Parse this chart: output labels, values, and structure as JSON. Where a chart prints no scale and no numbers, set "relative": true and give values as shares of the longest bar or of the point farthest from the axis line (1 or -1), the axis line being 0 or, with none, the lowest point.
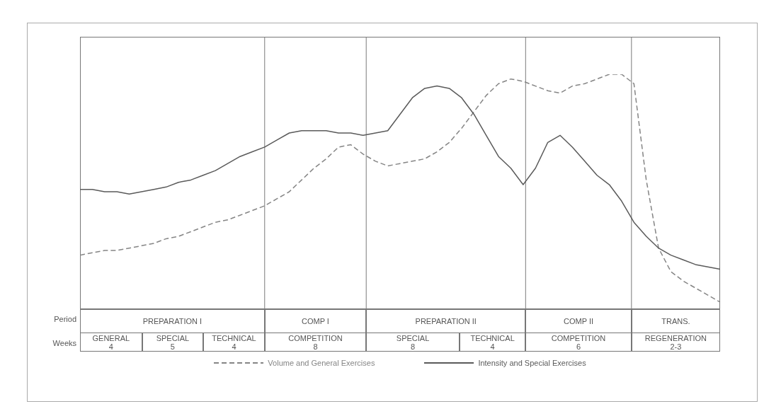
{
  "chart_data": {
    "type": "line",
    "relative": true,
    "categories": [
      null,
      null,
      null,
      null,
      null,
      null,
      null,
      null,
      null,
      null,
      null,
      null,
      null,
      null,
      null,
      null,
      null,
      null,
      null,
      null,
      null,
      null,
      null,
      null,
      null,
      null,
      null,
      null,
      null,
      null,
      null,
      null,
      null,
      null,
      null,
      null,
      null,
      null,
      null,
      null,
      null,
      null,
      null,
      null,
      null,
      null,
      null,
      null,
      null,
      null,
      null,
      null,
      null
    ],
    "series": [
      {
        "name": "Volume and General Exercises",
        "color": "#858585",
        "line_style": "dashed",
        "values": [
          0.23,
          0.24,
          0.25,
          0.25,
          0.26,
          0.27,
          0.28,
          0.3,
          0.31,
          0.33,
          0.35,
          0.37,
          0.38,
          0.4,
          0.42,
          0.44,
          0.47,
          0.5,
          0.55,
          0.6,
          0.64,
          0.69,
          0.7,
          0.66,
          0.63,
          0.61,
          0.62,
          0.63,
          0.64,
          0.67,
          0.71,
          0.77,
          0.84,
          0.91,
          0.96,
          0.98,
          0.97,
          0.95,
          0.93,
          0.92,
          0.95,
          0.96,
          0.98,
          1,
          1,
          0.96,
          0.55,
          0.26,
          0.16,
          0.12,
          0.09,
          0.06,
          0.03
        ]
      },
      {
        "name": "Intensity and Special Exercises",
        "color": "#5a5a5a",
        "line_style": "solid",
        "values": [
          0.51,
          0.51,
          0.5,
          0.5,
          0.49,
          0.5,
          0.51,
          0.52,
          0.54,
          0.55,
          0.57,
          0.59,
          0.62,
          0.65,
          0.67,
          0.69,
          0.72,
          0.75,
          0.76,
          0.76,
          0.76,
          0.75,
          0.75,
          0.74,
          0.75,
          0.76,
          0.83,
          0.9,
          0.94,
          0.95,
          0.94,
          0.9,
          0.83,
          0.74,
          0.65,
          0.6,
          0.53,
          0.6,
          0.71,
          0.74,
          0.69,
          0.63,
          0.57,
          0.53,
          0.46,
          0.37,
          0.31,
          0.26,
          0.23,
          0.21,
          0.19,
          0.18,
          0.17
        ]
      }
    ],
    "grid": "x",
    "annotations": [
      "Period",
      "Weeks",
      "PREPARATION I",
      "COMP I",
      "PREPARATION II",
      "COMP II",
      "TRANS.",
      "GENERAL\n4",
      "SPECIAL\n5",
      "TECHNICAL\n4",
      "COMPETITION\n8",
      "SPECIAL\n8",
      "TECHNICAL\n4",
      "COMPETITION\n6",
      "REGENERATION\n2-3"
    ],
    "legend": "bottom"
  }
}
